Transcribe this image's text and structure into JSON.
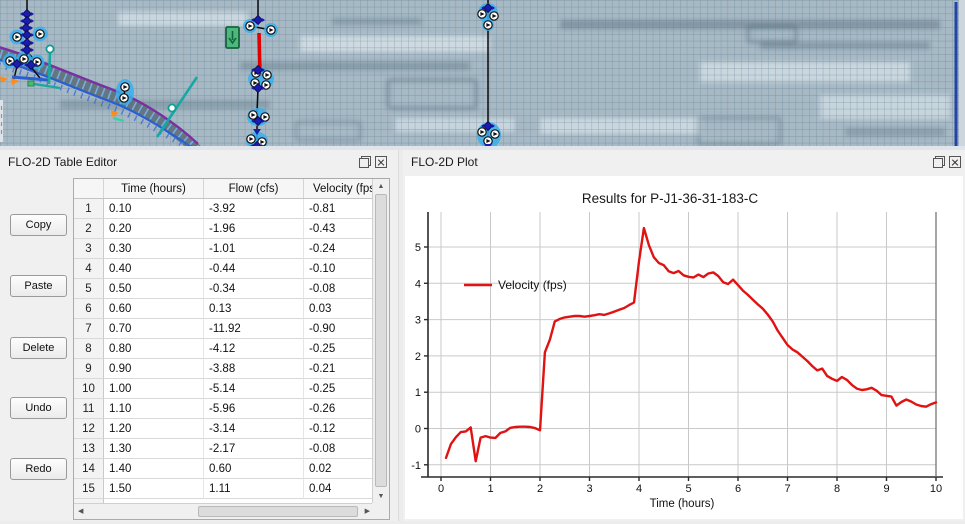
{
  "map": {
    "colors": {
      "background": "#a7b9c5",
      "grid_line": "#57768a",
      "channel_purple": "#7b2fa0",
      "channel_blue": "#2a5fd0",
      "channel_hatch": "#74aede",
      "drain_line": "#0b0b0b",
      "red_conduit": "#e00000",
      "node_halo": "#36b0f0",
      "node_diamond": "#1b1bb0",
      "teal_line": "#15a9a2",
      "culvert_green": "#4db87e",
      "orange_marker": "#ff8c1a",
      "boundary_blue": "#2343a8"
    }
  },
  "table_editor": {
    "title": "FLO-2D Table Editor",
    "buttons": [
      {
        "label": "Copy"
      },
      {
        "label": "Paste"
      },
      {
        "label": "Delete"
      },
      {
        "label": "Undo"
      },
      {
        "label": "Redo"
      }
    ],
    "columns": {
      "num": "",
      "time": "Time (hours)",
      "flow": "Flow (cfs)",
      "velocity": "Velocity (fps)"
    },
    "rows": [
      [
        "1",
        "0.10",
        "-3.92",
        "-0.81"
      ],
      [
        "2",
        "0.20",
        "-1.96",
        "-0.43"
      ],
      [
        "3",
        "0.30",
        "-1.01",
        "-0.24"
      ],
      [
        "4",
        "0.40",
        "-0.44",
        "-0.10"
      ],
      [
        "5",
        "0.50",
        "-0.34",
        "-0.08"
      ],
      [
        "6",
        "0.60",
        "0.13",
        "0.03"
      ],
      [
        "7",
        "0.70",
        "-11.92",
        "-0.90"
      ],
      [
        "8",
        "0.80",
        "-4.12",
        "-0.25"
      ],
      [
        "9",
        "0.90",
        "-3.88",
        "-0.21"
      ],
      [
        "10",
        "1.00",
        "-5.14",
        "-0.25"
      ],
      [
        "11",
        "1.10",
        "-5.96",
        "-0.26"
      ],
      [
        "12",
        "1.20",
        "-3.14",
        "-0.12"
      ],
      [
        "13",
        "1.30",
        "-2.17",
        "-0.08"
      ],
      [
        "14",
        "1.40",
        "0.60",
        "0.02"
      ],
      [
        "15",
        "1.50",
        "1.11",
        "0.04"
      ]
    ]
  },
  "plot_panel": {
    "title": "FLO-2D Plot"
  },
  "chart_data": {
    "type": "line",
    "title": "Results for P-J1-36-31-183-C",
    "xlabel": "Time (hours)",
    "ylabel": "",
    "xlim": [
      -0.35,
      10.3
    ],
    "ylim": [
      -1.33,
      5.96
    ],
    "xticks": [
      0,
      1,
      2,
      3,
      4,
      5,
      6,
      7,
      8,
      9,
      10
    ],
    "yticks": [
      -1,
      0,
      1,
      2,
      3,
      4,
      5
    ],
    "grid": true,
    "legend_position": "upper-left-inside",
    "series": [
      {
        "name": "Velocity (fps)",
        "color": "#e01212",
        "x": [
          0.1,
          0.2,
          0.3,
          0.4,
          0.5,
          0.6,
          0.7,
          0.8,
          0.9,
          1.0,
          1.1,
          1.2,
          1.3,
          1.4,
          1.5,
          1.6,
          1.7,
          1.8,
          1.9,
          2.0,
          2.1,
          2.2,
          2.3,
          2.4,
          2.5,
          2.6,
          2.7,
          2.8,
          2.9,
          3.0,
          3.1,
          3.2,
          3.3,
          3.4,
          3.5,
          3.6,
          3.7,
          3.8,
          3.9,
          4.0,
          4.1,
          4.2,
          4.3,
          4.4,
          4.5,
          4.6,
          4.7,
          4.8,
          4.9,
          5.0,
          5.1,
          5.2,
          5.3,
          5.4,
          5.5,
          5.6,
          5.7,
          5.8,
          5.9,
          6.0,
          6.1,
          6.2,
          6.3,
          6.4,
          6.5,
          6.6,
          6.7,
          6.8,
          6.9,
          7.0,
          7.1,
          7.2,
          7.3,
          7.4,
          7.5,
          7.6,
          7.7,
          7.8,
          7.9,
          8.0,
          8.1,
          8.2,
          8.3,
          8.4,
          8.5,
          8.6,
          8.7,
          8.8,
          8.9,
          9.0,
          9.1,
          9.2,
          9.3,
          9.4,
          9.5,
          9.6,
          9.7,
          9.8,
          9.9,
          10.0
        ],
        "y": [
          -0.81,
          -0.43,
          -0.24,
          -0.1,
          -0.08,
          0.03,
          -0.9,
          -0.25,
          -0.21,
          -0.25,
          -0.26,
          -0.12,
          -0.08,
          0.02,
          0.04,
          0.05,
          0.05,
          0.04,
          0.01,
          -0.05,
          2.1,
          2.45,
          2.95,
          3.02,
          3.06,
          3.08,
          3.1,
          3.1,
          3.08,
          3.1,
          3.12,
          3.15,
          3.13,
          3.17,
          3.22,
          3.27,
          3.32,
          3.4,
          3.47,
          4.6,
          5.52,
          5.05,
          4.72,
          4.56,
          4.5,
          4.33,
          4.28,
          4.34,
          4.22,
          4.18,
          4.16,
          4.24,
          4.17,
          4.27,
          4.3,
          4.2,
          4.03,
          3.98,
          4.1,
          3.95,
          3.8,
          3.68,
          3.55,
          3.42,
          3.3,
          3.14,
          2.95,
          2.7,
          2.5,
          2.3,
          2.18,
          2.1,
          1.98,
          1.86,
          1.72,
          1.6,
          1.65,
          1.45,
          1.37,
          1.31,
          1.42,
          1.34,
          1.2,
          1.1,
          1.06,
          1.08,
          1.12,
          1.04,
          0.92,
          0.9,
          0.88,
          0.63,
          0.73,
          0.8,
          0.74,
          0.66,
          0.62,
          0.6,
          0.67,
          0.72
        ]
      }
    ]
  }
}
